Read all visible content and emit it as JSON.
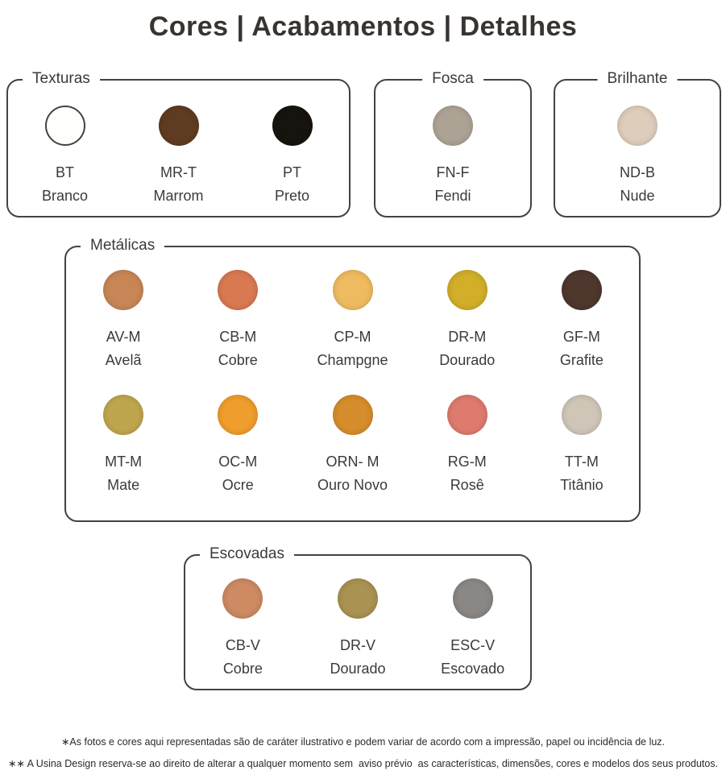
{
  "title": "Cores | Acabamentos | Detalhes",
  "groups": [
    {
      "label": "Texturas",
      "swatches": [
        {
          "code": "BT",
          "name": "Branco",
          "color": "#fefefb"
        },
        {
          "code": "MR-T",
          "name": "Marrom",
          "color": "#5f3c21"
        },
        {
          "code": "PT",
          "name": "Preto",
          "color": "#17140f"
        }
      ]
    },
    {
      "label": "Fosca",
      "swatches": [
        {
          "code": "FN-F",
          "name": "Fendi",
          "color": "#ada395"
        }
      ]
    },
    {
      "label": "Brilhante",
      "swatches": [
        {
          "code": "ND-B",
          "name": "Nude",
          "color": "#decdbb"
        }
      ]
    },
    {
      "label": "Metálicas",
      "swatches": [
        {
          "code": "AV-M",
          "name": "Avelã",
          "color": "#c88657"
        },
        {
          "code": "CB-M",
          "name": "Cobre",
          "color": "#d97951"
        },
        {
          "code": "CP-M",
          "name": "Champgne",
          "color": "#eebb60"
        },
        {
          "code": "DR-M",
          "name": "Dourado",
          "color": "#d2ae29"
        },
        {
          "code": "GF-M",
          "name": "Grafite",
          "color": "#4e372d"
        },
        {
          "code": "MT-M",
          "name": "Mate",
          "color": "#bfa64e"
        },
        {
          "code": "OC-M",
          "name": "Ocre",
          "color": "#ef9d2c"
        },
        {
          "code": "ORN- M",
          "name": "Ouro Novo",
          "color": "#d68d2b"
        },
        {
          "code": "RG-M",
          "name": "Rosê",
          "color": "#df7a6e"
        },
        {
          "code": "TT-M",
          "name": "Titânio",
          "color": "#cfc6b8"
        }
      ]
    },
    {
      "label": "Escovadas",
      "swatches": [
        {
          "code": "CB-V",
          "name": "Cobre",
          "color": "#cd8a63"
        },
        {
          "code": "DR-V",
          "name": "Dourado",
          "color": "#aa9252"
        },
        {
          "code": "ESC-V",
          "name": "Escovado",
          "color": "#8a8784"
        }
      ]
    }
  ],
  "footnotes": [
    "∗As fotos e cores aqui representadas são de caráter ilustrativo e podem variar de acordo com a impressão, papel ou incidência de luz.",
    "∗∗ A Usina Design reserva-se ao direito de alterar a qualquer momento sem  aviso prévio  as características, dimensões, cores e modelos dos seus produtos."
  ]
}
